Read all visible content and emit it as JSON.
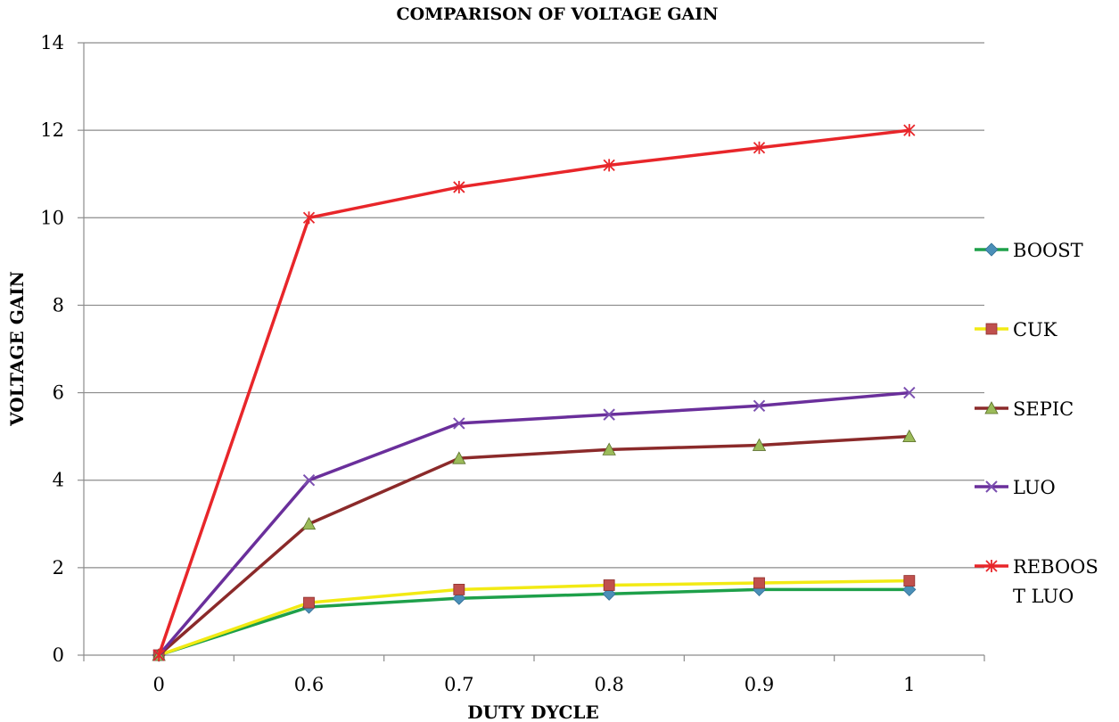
{
  "chart_data": {
    "type": "line",
    "title": "COMPARISON OF VOLTAGE GAIN",
    "xlabel": "DUTY DYCLE",
    "ylabel": "VOLTAGE  GAIN",
    "categories": [
      "0",
      "0.6",
      "0.7",
      "0.8",
      "0.9",
      "1"
    ],
    "ylim": [
      0,
      14
    ],
    "yticks": [
      0,
      2,
      4,
      6,
      8,
      10,
      12,
      14
    ],
    "grid": true,
    "legend_position": "right",
    "series": [
      {
        "name": "BOOST",
        "name_lines": [
          "BOOST"
        ],
        "color": "#1ea04a",
        "marker": "diamond",
        "marker_color": "#4a8fb8",
        "values": [
          0,
          1.1,
          1.3,
          1.4,
          1.5,
          1.5
        ]
      },
      {
        "name": "CUK",
        "name_lines": [
          "CUK"
        ],
        "color": "#f2ea14",
        "marker": "square",
        "marker_color": "#c0504d",
        "values": [
          0,
          1.2,
          1.5,
          1.6,
          1.65,
          1.7
        ]
      },
      {
        "name": "SEPIC",
        "name_lines": [
          "SEPIC"
        ],
        "color": "#8b2a2a",
        "marker": "triangle",
        "marker_color": "#9bbb59",
        "values": [
          0,
          3,
          4.5,
          4.7,
          4.8,
          5
        ]
      },
      {
        "name": "LUO",
        "name_lines": [
          "LUO"
        ],
        "color": "#6a2f9b",
        "marker": "x",
        "marker_color": "#7b4fb0",
        "values": [
          0,
          4,
          5.3,
          5.5,
          5.7,
          6
        ]
      },
      {
        "name": "REBOOST LUO",
        "name_lines": [
          "REBOOS",
          "T LUO"
        ],
        "color": "#e8262a",
        "marker": "star",
        "marker_color": "#e8262a",
        "values": [
          0,
          10,
          10.7,
          11.2,
          11.6,
          12
        ]
      }
    ]
  }
}
